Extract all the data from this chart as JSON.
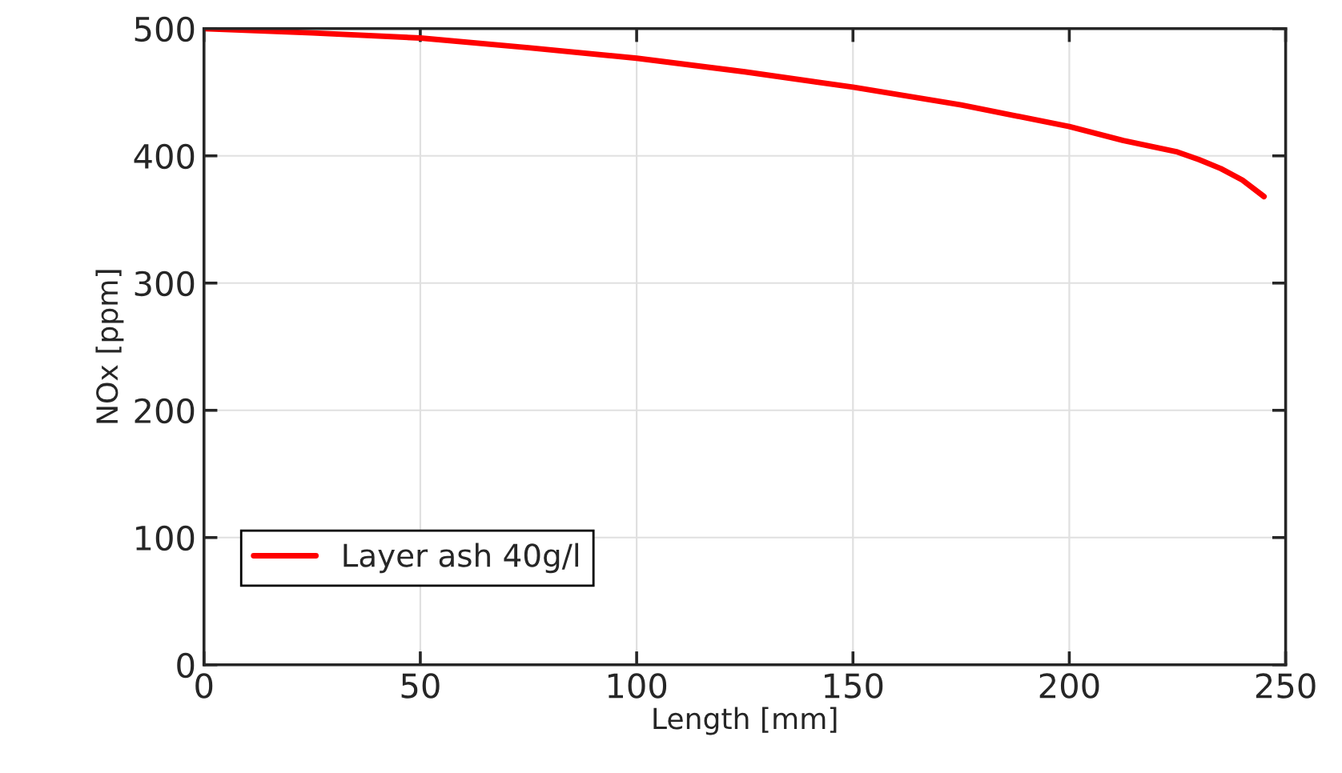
{
  "chart_data": {
    "type": "line",
    "xlabel": "Length [mm]",
    "ylabel": "NOx [ppm]",
    "xlim": [
      0,
      250
    ],
    "ylim": [
      0,
      500
    ],
    "xticks": [
      0,
      50,
      100,
      150,
      200,
      250
    ],
    "yticks": [
      0,
      100,
      200,
      300,
      400,
      500
    ],
    "grid": true,
    "legend": "bottom left",
    "line_style": "solid",
    "series": [
      {
        "name": "Layer ash 40g/l",
        "color": "#ff0000",
        "x": [
          0,
          25,
          50,
          75,
          100,
          125,
          150,
          175,
          200,
          212.5,
          225,
          230,
          235,
          240,
          245
        ],
        "values": [
          500,
          496.6,
          492.6,
          485,
          476.7,
          466,
          454,
          440,
          423,
          412,
          403,
          397,
          390,
          381,
          368
        ]
      }
    ]
  }
}
